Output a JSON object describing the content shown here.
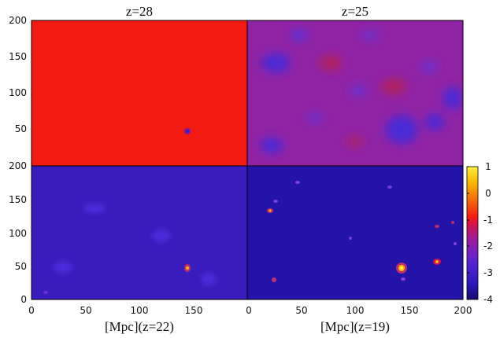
{
  "chart_data": {
    "type": "heatmap",
    "colorbar": {
      "range": [
        -4,
        1
      ],
      "ticks": [
        "1",
        "0",
        "-1",
        "-2",
        "-3",
        "-4"
      ],
      "colors": [
        "#1a0a6e",
        "#2c16c0",
        "#5a22d8",
        "#9b1aa0",
        "#d4104e",
        "#f41a14",
        "#f46a0a",
        "#f8b800",
        "#fff040"
      ]
    },
    "axes": {
      "left_y_ticks_top": [
        "200",
        "150",
        "100",
        "50"
      ],
      "left_y_ticks_bottom": [
        "200",
        "150",
        "100",
        "50",
        "0"
      ],
      "x_ticks_left": [
        "0",
        "50",
        "100",
        "150"
      ],
      "x_ticks_right": [
        "0",
        "50",
        "100",
        "150",
        "200"
      ],
      "range": [
        0,
        200
      ]
    },
    "panels": [
      {
        "title": "z=28",
        "xlabel": "",
        "level": -1.0,
        "background": "#f41a14"
      },
      {
        "title": "z=25",
        "xlabel": "",
        "level": -1.6,
        "background": "#8f23a4"
      },
      {
        "title": "",
        "xlabel": "[Mpc](z=22)",
        "level": -2.7,
        "background": "#3a1cbe"
      },
      {
        "title": "",
        "xlabel": "[Mpc](z=19)",
        "level": -3.0,
        "background": "#2413a8"
      }
    ]
  }
}
